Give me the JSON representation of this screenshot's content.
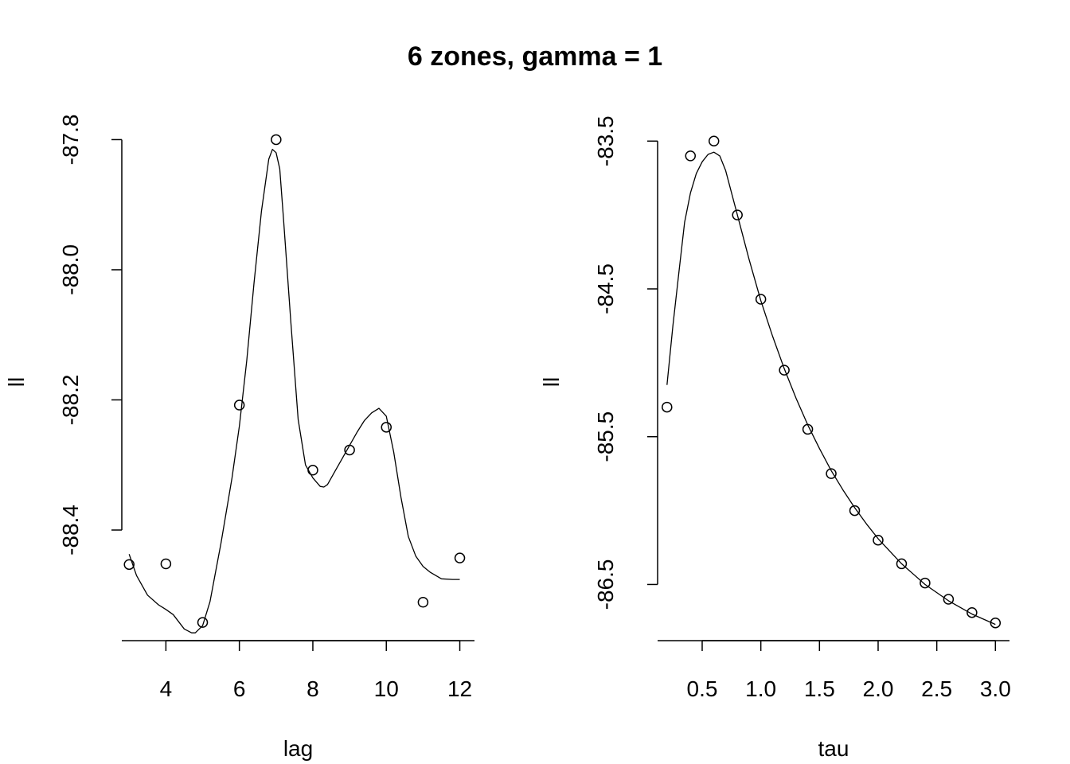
{
  "title": "6 zones, gamma = 1",
  "chart_data": [
    {
      "type": "scatter",
      "xlabel": "lag",
      "ylabel": "ll",
      "xlim": [
        2.8,
        12.4
      ],
      "ylim": [
        -88.57,
        -87.775
      ],
      "xticks": [
        4,
        6,
        8,
        10,
        12
      ],
      "xtick_labels": [
        "4",
        "6",
        "8",
        "10",
        "12"
      ],
      "yticks": [
        -88.4,
        -88.2,
        -88.0,
        -87.8
      ],
      "ytick_labels": [
        "-88.4",
        "-88.2",
        "-88.0",
        "-87.8"
      ],
      "points": {
        "x": [
          3,
          4,
          5,
          6,
          7,
          8,
          9,
          10,
          11,
          12
        ],
        "y": [
          -88.453,
          -88.452,
          -88.542,
          -88.208,
          -87.8,
          -88.308,
          -88.277,
          -88.242,
          -88.511,
          -88.443
        ]
      },
      "smooth": {
        "x": [
          3.0,
          3.2,
          3.5,
          3.8,
          4.0,
          4.2,
          4.5,
          4.7,
          4.8,
          5.0,
          5.2,
          5.5,
          5.8,
          6.0,
          6.2,
          6.4,
          6.6,
          6.8,
          6.9,
          7.0,
          7.1,
          7.2,
          7.4,
          7.6,
          7.8,
          8.0,
          8.2,
          8.3,
          8.4,
          8.6,
          8.8,
          9.0,
          9.2,
          9.4,
          9.6,
          9.8,
          10.0,
          10.2,
          10.4,
          10.6,
          10.8,
          11.0,
          11.2,
          11.5,
          11.8,
          12.0
        ],
        "y": [
          -88.437,
          -88.47,
          -88.5,
          -88.515,
          -88.522,
          -88.53,
          -88.552,
          -88.558,
          -88.558,
          -88.547,
          -88.51,
          -88.42,
          -88.32,
          -88.24,
          -88.14,
          -88.02,
          -87.91,
          -87.83,
          -87.815,
          -87.82,
          -87.845,
          -87.92,
          -88.08,
          -88.23,
          -88.3,
          -88.32,
          -88.333,
          -88.334,
          -88.33,
          -88.31,
          -88.29,
          -88.27,
          -88.25,
          -88.232,
          -88.22,
          -88.213,
          -88.225,
          -88.28,
          -88.35,
          -88.41,
          -88.44,
          -88.456,
          -88.465,
          -88.475,
          -88.476,
          -88.476
        ]
      }
    },
    {
      "type": "scatter",
      "xlabel": "tau",
      "ylabel": "ll",
      "xlim": [
        0.12,
        3.12
      ],
      "ylim": [
        -86.88,
        -83.38
      ],
      "xticks": [
        0.5,
        1.0,
        1.5,
        2.0,
        2.5,
        3.0
      ],
      "xtick_labels": [
        "0.5",
        "1.0",
        "1.5",
        "2.0",
        "2.5",
        "3.0"
      ],
      "yticks": [
        -86.5,
        -85.5,
        -84.5,
        -83.5
      ],
      "ytick_labels": [
        "-86.5",
        "-85.5",
        "-84.5",
        "-83.5"
      ],
      "points": {
        "x": [
          0.2,
          0.4,
          0.6,
          0.8,
          1.0,
          1.2,
          1.4,
          1.6,
          1.8,
          2.0,
          2.2,
          2.4,
          2.6,
          2.8,
          3.0
        ],
        "y": [
          -85.3,
          -83.6,
          -83.5,
          -84.0,
          -84.57,
          -85.05,
          -85.45,
          -85.75,
          -86.0,
          -86.2,
          -86.36,
          -86.49,
          -86.6,
          -86.69,
          -86.76
        ]
      },
      "smooth": {
        "x": [
          0.2,
          0.25,
          0.3,
          0.35,
          0.4,
          0.45,
          0.5,
          0.55,
          0.6,
          0.65,
          0.7,
          0.8,
          0.9,
          1.0,
          1.1,
          1.2,
          1.3,
          1.4,
          1.5,
          1.6,
          1.7,
          1.8,
          1.9,
          2.0,
          2.2,
          2.4,
          2.6,
          2.8,
          3.0
        ],
        "y": [
          -85.15,
          -84.75,
          -84.4,
          -84.05,
          -83.85,
          -83.72,
          -83.64,
          -83.59,
          -83.575,
          -83.6,
          -83.7,
          -84.0,
          -84.3,
          -84.58,
          -84.82,
          -85.04,
          -85.24,
          -85.42,
          -85.58,
          -85.73,
          -85.86,
          -85.98,
          -86.09,
          -86.19,
          -86.36,
          -86.5,
          -86.61,
          -86.7,
          -86.77
        ]
      }
    }
  ]
}
